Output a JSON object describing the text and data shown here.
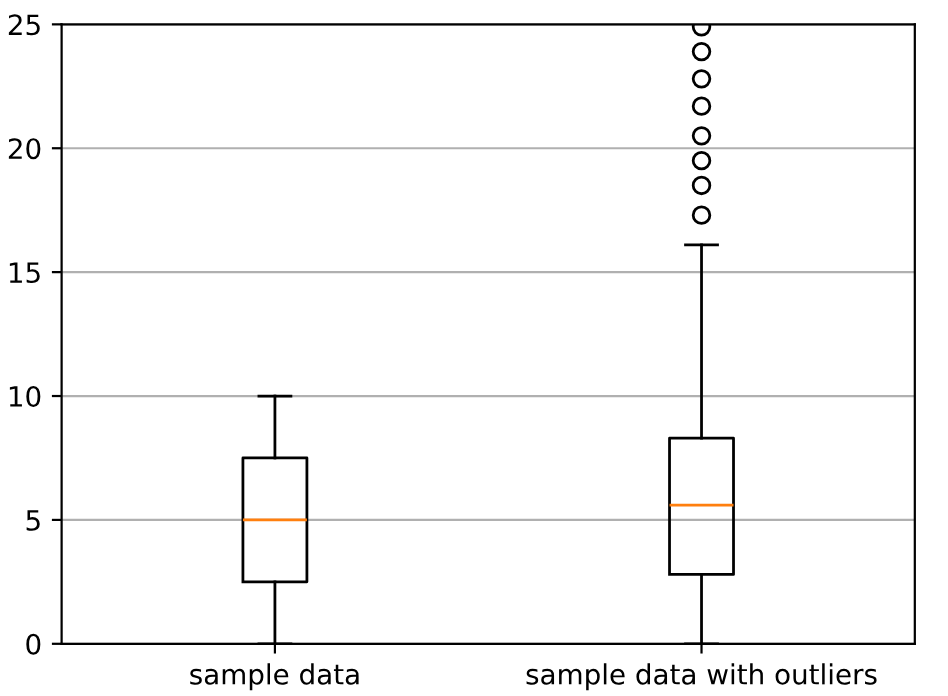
{
  "chart_data": {
    "type": "box",
    "categories": [
      "sample data",
      "sample data with outliers"
    ],
    "boxes": [
      {
        "low": 0,
        "q1": 2.5,
        "median": 5.0,
        "q3": 7.5,
        "high": 10.0
      },
      {
        "low": 0,
        "q1": 2.8,
        "median": 5.6,
        "q3": 8.3,
        "high": 16.1,
        "outliers": [
          17.3,
          18.5,
          19.5,
          20.5,
          21.7,
          22.8,
          23.9,
          24.9
        ]
      }
    ],
    "color": "#000000",
    "ylim": [
      0,
      25
    ],
    "yticks": [
      0,
      5,
      10,
      15,
      20,
      25
    ],
    "grid": "y",
    "marker": "circle"
  }
}
